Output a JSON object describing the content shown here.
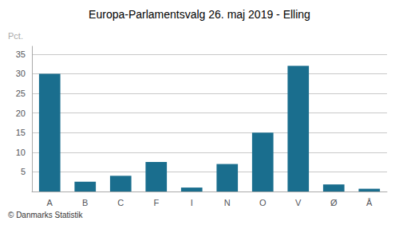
{
  "chart_data": {
    "type": "bar",
    "title": "Europa-Parlamentsvalg 26. maj 2019 - Elling",
    "categories": [
      "A",
      "B",
      "C",
      "F",
      "I",
      "N",
      "O",
      "V",
      "Ø",
      "Å"
    ],
    "values": [
      30.0,
      2.5,
      4.0,
      7.5,
      1.0,
      7.0,
      15.0,
      32.0,
      1.8,
      0.7
    ],
    "color": "#1a6e8e",
    "ylabel": "Pct.",
    "ylim": [
      0,
      37
    ],
    "yticks": [
      5,
      10,
      15,
      20,
      25,
      30,
      35
    ],
    "grid": true,
    "footer": "© Danmarks Statistik"
  }
}
